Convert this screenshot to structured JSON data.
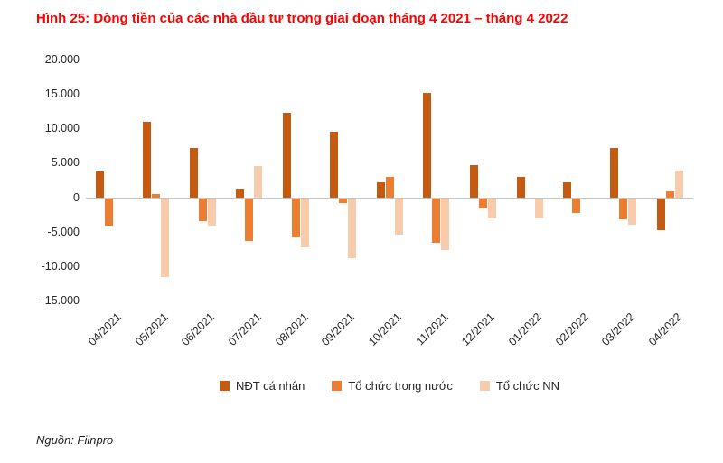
{
  "title": "Hình 25: Dòng tiền của các nhà đầu tư trong giai đoạn tháng 4 2021 – tháng 4 2022",
  "source": "Nguồn: Fiinpro",
  "chart_data": {
    "type": "bar",
    "title": "Hình 25: Dòng tiền của các nhà đầu tư trong giai đoạn tháng 4 2021 – tháng 4 2022",
    "categories": [
      "04/2021",
      "05/2021",
      "06/2021",
      "07/2021",
      "08/2021",
      "09/2021",
      "10/2021",
      "11/2021",
      "12/2021",
      "01/2022",
      "02/2022",
      "03/2022",
      "04/2022"
    ],
    "series": [
      {
        "name": "NĐT cá nhân",
        "color": "#C55A11",
        "values": [
          3800,
          11000,
          7200,
          1300,
          12300,
          9500,
          2200,
          15200,
          4600,
          3000,
          2200,
          7200,
          -4700
        ]
      },
      {
        "name": "Tổ chức trong nước",
        "color": "#ED7D31",
        "values": [
          -4000,
          500,
          -3300,
          -6200,
          -5700,
          -700,
          3000,
          -6500,
          -1500,
          0,
          -2100,
          -3100,
          800
        ]
      },
      {
        "name": "Tổ chức NN",
        "color": "#F8CBAD",
        "values": [
          0,
          -11500,
          -4000,
          4500,
          -7200,
          -8700,
          -5300,
          -7500,
          -2900,
          -2900,
          0,
          -3900,
          3900
        ]
      }
    ],
    "xlabel": "",
    "ylabel": "",
    "ylim": [
      -15000,
      20000
    ],
    "ytick_step": 5000,
    "ytick_values": [
      20000,
      15000,
      10000,
      5000,
      0,
      -5000,
      -10000,
      -15000
    ],
    "ytick_labels": [
      "20.000",
      "15.000",
      "10.000",
      "5.000",
      "0",
      "-5.000",
      "-10.000",
      "-15.000"
    ],
    "grid": false,
    "legend_position": "bottom"
  }
}
